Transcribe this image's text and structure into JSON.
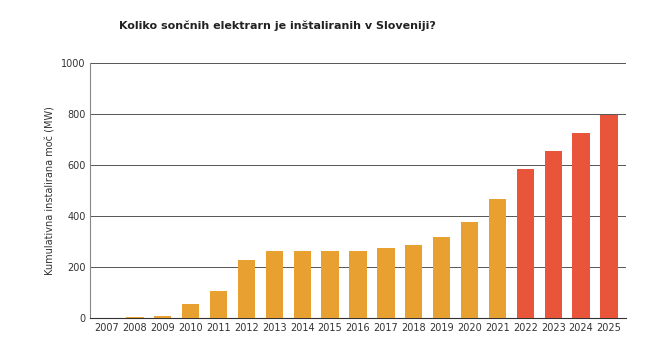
{
  "chart_data": {
    "type": "bar",
    "title": "Koliko sončnih elektrarn je inštaliranih v Sloveniji?",
    "y_label": "Kumulativna instalirana moč (MW)",
    "categories": [
      "2007",
      "2008",
      "2009",
      "2010",
      "2011",
      "2012",
      "2013",
      "2014",
      "2015",
      "2016",
      "2017",
      "2018",
      "2019",
      "2020",
      "2021",
      "2022",
      "2023",
      "2024",
      "2025"
    ],
    "values": [
      1,
      2,
      9,
      55,
      106,
      227,
      263,
      263,
      263,
      263,
      275,
      286,
      318,
      376,
      467,
      584,
      655,
      725,
      796
    ],
    "colors": [
      "#e8a030",
      "#e8a030",
      "#e8a030",
      "#e8a030",
      "#e8a030",
      "#e8a030",
      "#e8a030",
      "#e8a030",
      "#e8a030",
      "#e8a030",
      "#e8a030",
      "#e8a030",
      "#e8a030",
      "#e8a030",
      "#e8a030",
      "#e8553a",
      "#e8553a",
      "#e8553a",
      "#e8553a"
    ],
    "ylim": [
      0,
      1000
    ],
    "yticks": [
      0,
      200,
      400,
      600,
      800,
      1000
    ],
    "grid": true
  }
}
